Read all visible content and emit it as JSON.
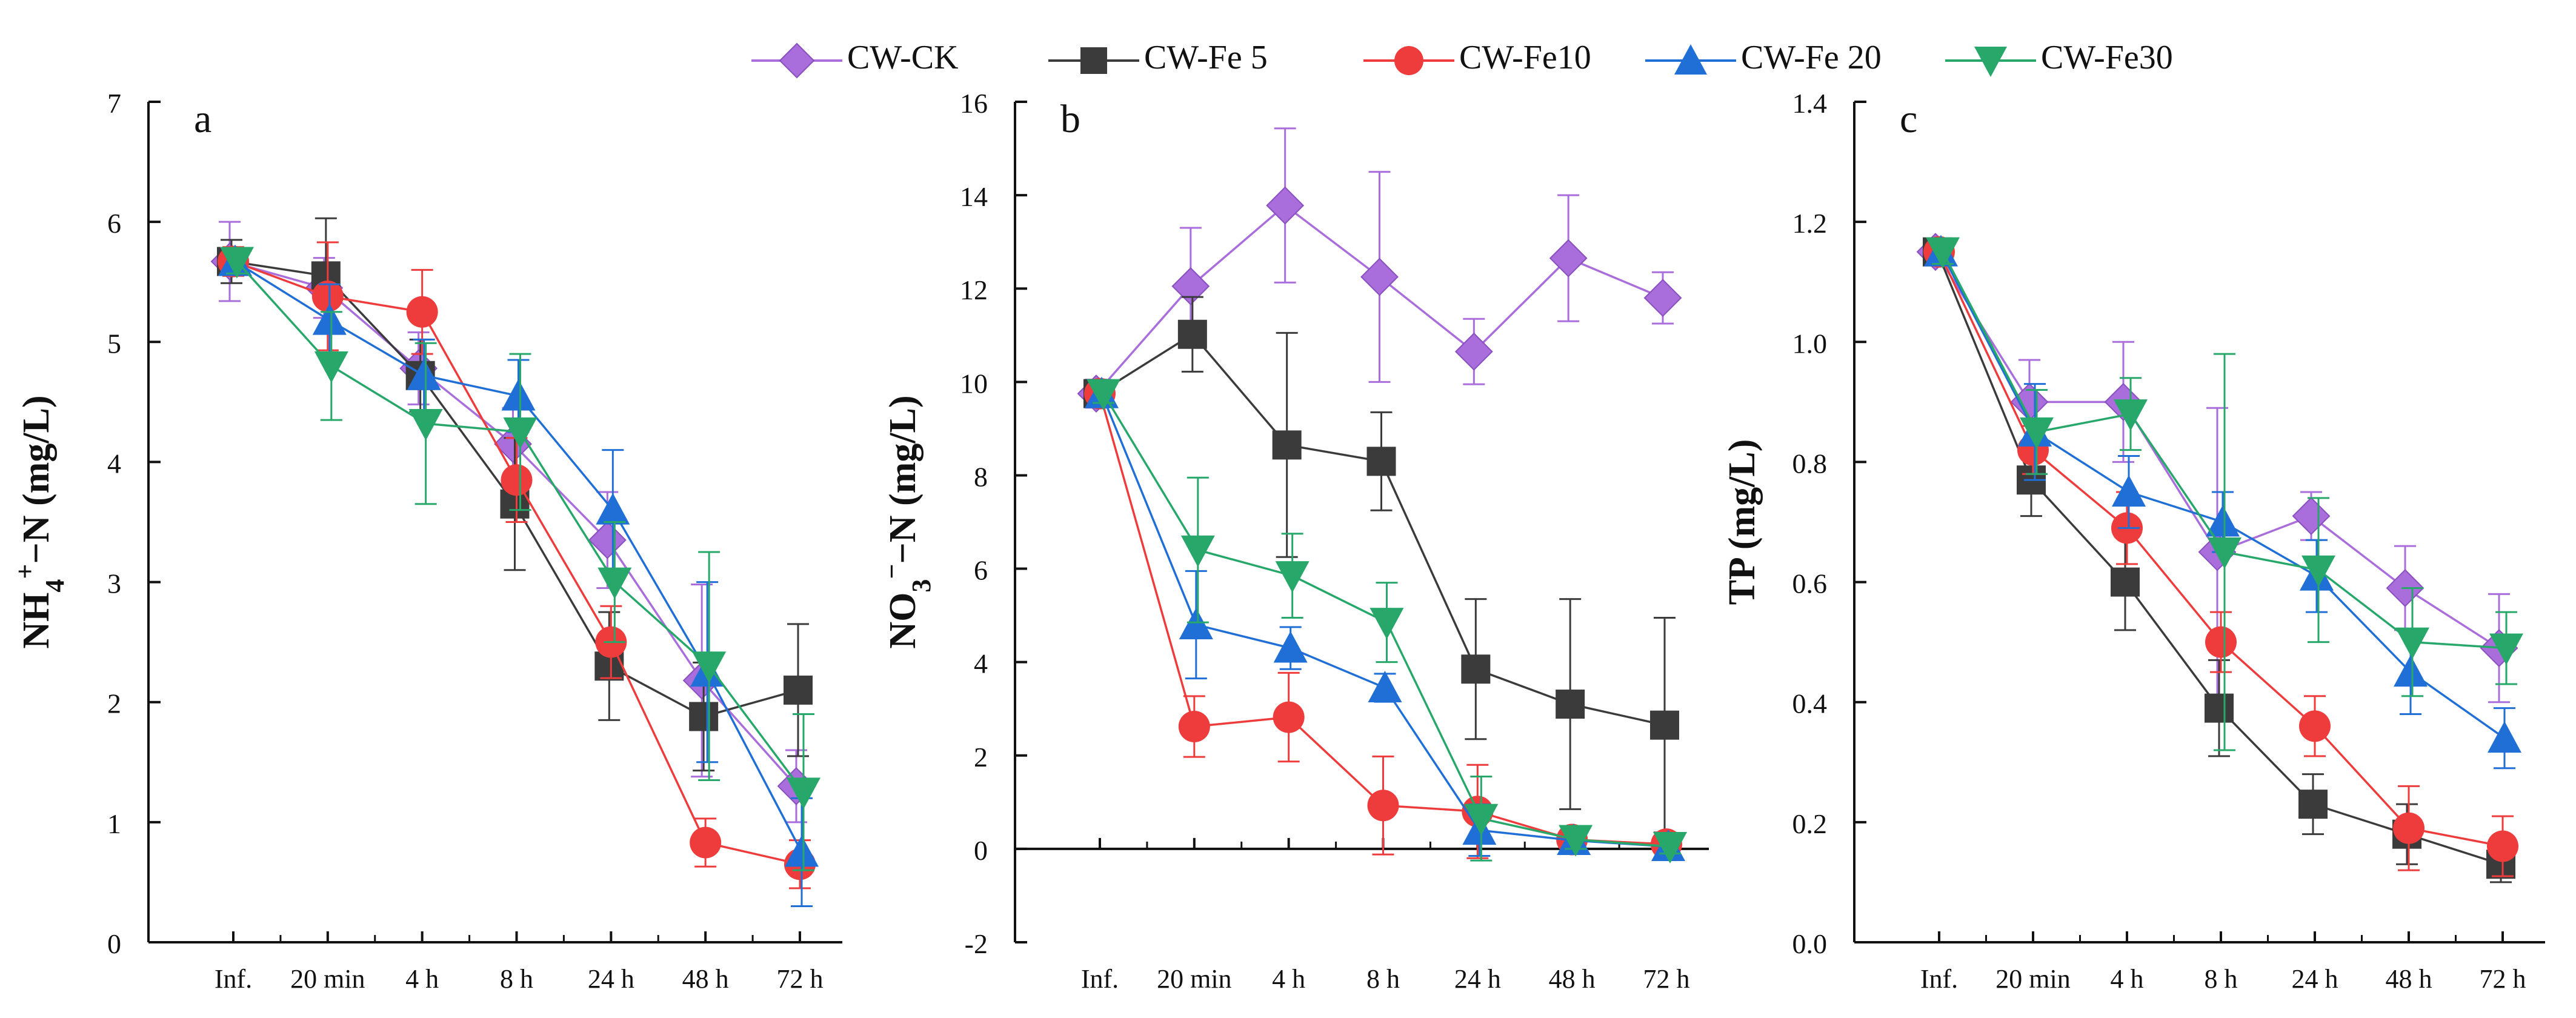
{
  "legend": {
    "series": [
      {
        "name": "CW-CK",
        "color": "#A96EDB",
        "marker": "diamond"
      },
      {
        "name": "CW-Fe 5",
        "color": "#3B3B3B",
        "marker": "square"
      },
      {
        "name": "CW-Fe10",
        "color": "#EE3B3B",
        "marker": "circle"
      },
      {
        "name": "CW-Fe 20",
        "color": "#1F6FD6",
        "marker": "triangle-up"
      },
      {
        "name": "CW-Fe30",
        "color": "#27A86A",
        "marker": "triangle-down"
      }
    ]
  },
  "chart_data": [
    {
      "type": "line",
      "panel_label": "a",
      "ylabel": "NH4+−N (mg/L)",
      "ylabel_parts": {
        "main": "NH",
        "sub": "4",
        "sup": "+",
        "rest": "−N (mg/L)"
      },
      "categories": [
        "Inf.",
        "20 min",
        "4 h",
        "8 h",
        "24 h",
        "48 h",
        "72 h"
      ],
      "ylim": [
        0,
        7
      ],
      "yticks": [
        0,
        1,
        2,
        3,
        4,
        5,
        6,
        7
      ],
      "ytick_labels": [
        "0",
        "1",
        "2",
        "3",
        "4",
        "5",
        "6",
        "7"
      ],
      "series": [
        {
          "name": "CW-CK",
          "values": [
            5.67,
            5.45,
            4.78,
            4.15,
            3.35,
            2.18,
            1.3
          ],
          "errors": [
            0.33,
            0.25,
            0.3,
            0.3,
            0.4,
            0.8,
            0.3
          ]
        },
        {
          "name": "CW-Fe 5",
          "values": [
            5.67,
            5.55,
            4.72,
            3.65,
            2.3,
            1.88,
            2.1
          ],
          "errors": [
            0.18,
            0.48,
            0.3,
            0.55,
            0.45,
            0.45,
            0.55
          ]
        },
        {
          "name": "CW-Fe10",
          "values": [
            5.67,
            5.38,
            5.25,
            3.85,
            2.5,
            0.83,
            0.65
          ],
          "errors": [
            0.12,
            0.45,
            0.35,
            0.35,
            0.3,
            0.2,
            0.2
          ]
        },
        {
          "name": "CW-Fe 20",
          "values": [
            5.67,
            5.18,
            4.72,
            4.55,
            3.6,
            2.25,
            0.75
          ],
          "errors": [
            0.1,
            0.3,
            0.3,
            0.3,
            0.5,
            0.75,
            0.45
          ]
        },
        {
          "name": "CW-Fe30",
          "values": [
            5.67,
            4.8,
            4.32,
            4.25,
            3.0,
            2.3,
            1.25
          ],
          "errors": [
            0.1,
            0.45,
            0.67,
            0.65,
            0.5,
            0.95,
            0.65
          ]
        }
      ]
    },
    {
      "type": "line",
      "panel_label": "b",
      "ylabel": "NO3−−N (mg/L)",
      "ylabel_parts": {
        "main": "NO",
        "sub": "3",
        "sup": "−",
        "rest": "−N (mg/L)"
      },
      "categories": [
        "Inf.",
        "20 min",
        "4 h",
        "8 h",
        "24 h",
        "48 h",
        "72 h"
      ],
      "ylim": [
        -2,
        16
      ],
      "yticks": [
        -2,
        0,
        2,
        4,
        6,
        8,
        10,
        12,
        14,
        16
      ],
      "ytick_labels": [
        "-2",
        "0",
        "2",
        "4",
        "6",
        "8",
        "10",
        "12",
        "14",
        "16"
      ],
      "series": [
        {
          "name": "CW-CK",
          "values": [
            9.75,
            12.05,
            13.78,
            12.25,
            10.65,
            12.65,
            11.8
          ],
          "errors": [
            0.3,
            1.25,
            1.65,
            2.25,
            0.7,
            1.35,
            0.55
          ]
        },
        {
          "name": "CW-Fe 5",
          "values": [
            9.75,
            11.02,
            8.65,
            8.3,
            3.85,
            3.1,
            2.65
          ],
          "errors": [
            0.2,
            0.8,
            2.4,
            1.05,
            1.5,
            2.25,
            2.3
          ]
        },
        {
          "name": "CW-Fe10",
          "values": [
            9.75,
            2.62,
            2.82,
            0.93,
            0.8,
            0.2,
            0.1
          ],
          "errors": [
            0.2,
            0.65,
            0.95,
            1.05,
            1.0,
            0.25,
            0.15
          ]
        },
        {
          "name": "CW-Fe 20",
          "values": [
            9.75,
            4.8,
            4.3,
            3.45,
            0.4,
            0.18,
            0.05
          ],
          "errors": [
            0.2,
            1.15,
            0.45,
            0.3,
            0.55,
            0.2,
            0.15
          ]
        },
        {
          "name": "CW-Fe30",
          "values": [
            9.75,
            6.4,
            5.85,
            4.85,
            0.65,
            0.2,
            0.05
          ],
          "errors": [
            0.2,
            1.55,
            0.9,
            0.85,
            0.9,
            0.2,
            0.15
          ]
        }
      ]
    },
    {
      "type": "line",
      "panel_label": "c",
      "ylabel": "TP (mg/L)",
      "ylabel_parts": {
        "main": "TP (mg/L)",
        "sub": "",
        "sup": "",
        "rest": ""
      },
      "categories": [
        "Inf.",
        "20 min",
        "4 h",
        "8 h",
        "24 h",
        "48 h",
        "72 h"
      ],
      "ylim": [
        0,
        1.4
      ],
      "yticks": [
        0,
        0.2,
        0.4,
        0.6,
        0.8,
        1.0,
        1.2,
        1.4
      ],
      "ytick_labels": [
        "0.0",
        "0.2",
        "0.4",
        "0.6",
        "0.8",
        "1.0",
        "1.2",
        "1.4"
      ],
      "series": [
        {
          "name": "CW-CK",
          "values": [
            1.15,
            0.9,
            0.9,
            0.65,
            0.71,
            0.59,
            0.49
          ],
          "errors": [
            0.02,
            0.07,
            0.1,
            0.24,
            0.04,
            0.07,
            0.09
          ]
        },
        {
          "name": "CW-Fe 5",
          "values": [
            1.15,
            0.77,
            0.6,
            0.39,
            0.23,
            0.18,
            0.13
          ],
          "errors": [
            0.02,
            0.06,
            0.08,
            0.08,
            0.05,
            0.05,
            0.03
          ]
        },
        {
          "name": "CW-Fe10",
          "values": [
            1.15,
            0.82,
            0.69,
            0.5,
            0.36,
            0.19,
            0.16
          ],
          "errors": [
            0.02,
            0.04,
            0.06,
            0.05,
            0.05,
            0.07,
            0.05
          ]
        },
        {
          "name": "CW-Fe 20",
          "values": [
            1.15,
            0.85,
            0.75,
            0.7,
            0.61,
            0.45,
            0.34
          ],
          "errors": [
            0.02,
            0.08,
            0.06,
            0.05,
            0.06,
            0.07,
            0.05
          ]
        },
        {
          "name": "CW-Fe30",
          "values": [
            1.15,
            0.85,
            0.88,
            0.65,
            0.62,
            0.5,
            0.49
          ],
          "errors": [
            0.02,
            0.07,
            0.06,
            0.33,
            0.12,
            0.09,
            0.06
          ]
        }
      ]
    }
  ]
}
